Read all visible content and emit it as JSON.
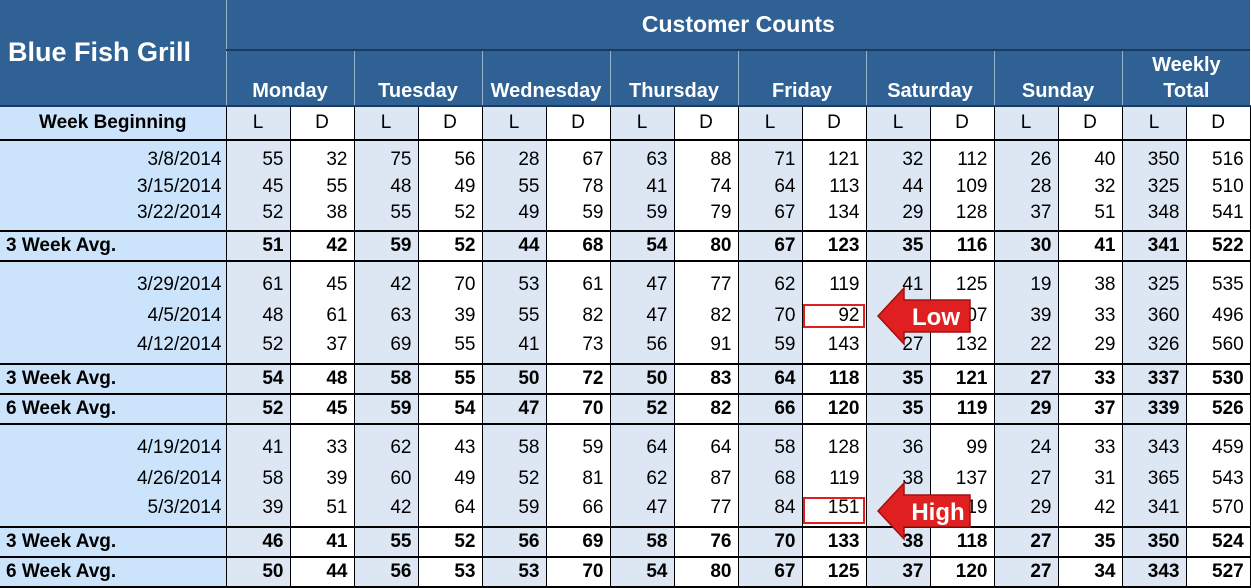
{
  "app_title": "Blue Fish Grill",
  "header_title": "Customer Counts",
  "days": [
    "Monday",
    "Tuesday",
    "Wednesday",
    "Thursday",
    "Friday",
    "Saturday",
    "Sunday"
  ],
  "weekly_total_label_1": "Weekly",
  "weekly_total_label_2": "Total",
  "week_beginning_label": "Week Beginning",
  "lunch_label": "L",
  "dinner_label": "D",
  "rows": [
    {
      "kind": "data",
      "group": 1,
      "pos": "first",
      "label": "3/8/2014",
      "values": [
        55,
        32,
        75,
        56,
        28,
        67,
        63,
        88,
        71,
        121,
        32,
        112,
        26,
        40,
        350,
        516
      ]
    },
    {
      "kind": "data",
      "group": 1,
      "pos": "mid",
      "label": "3/15/2014",
      "values": [
        45,
        55,
        48,
        49,
        55,
        78,
        41,
        74,
        64,
        113,
        44,
        109,
        28,
        32,
        325,
        510
      ]
    },
    {
      "kind": "data",
      "group": 1,
      "pos": "last",
      "label": "3/22/2014",
      "values": [
        52,
        38,
        55,
        52,
        49,
        59,
        59,
        79,
        67,
        134,
        29,
        128,
        37,
        51,
        348,
        541
      ]
    },
    {
      "kind": "avg",
      "label": "3 Week Avg.",
      "values": [
        51,
        42,
        59,
        52,
        44,
        68,
        54,
        80,
        67,
        123,
        35,
        116,
        30,
        41,
        341,
        522
      ]
    },
    {
      "kind": "data",
      "group": 2,
      "pos": "first",
      "label": "3/29/2014",
      "values": [
        61,
        45,
        42,
        70,
        53,
        61,
        47,
        77,
        62,
        119,
        41,
        125,
        19,
        38,
        325,
        535
      ]
    },
    {
      "kind": "data",
      "group": 2,
      "pos": "mid",
      "label": "4/5/2014",
      "values": [
        48,
        61,
        63,
        39,
        55,
        82,
        47,
        82,
        70,
        92,
        "",
        107,
        39,
        33,
        360,
        496
      ]
    },
    {
      "kind": "data",
      "group": 2,
      "pos": "last",
      "label": "4/12/2014",
      "values": [
        52,
        37,
        69,
        55,
        41,
        73,
        56,
        91,
        59,
        143,
        27,
        132,
        22,
        29,
        326,
        560
      ]
    },
    {
      "kind": "avg",
      "label": "3 Week Avg.",
      "values": [
        54,
        48,
        58,
        55,
        50,
        72,
        50,
        83,
        64,
        118,
        35,
        121,
        27,
        33,
        337,
        530
      ]
    },
    {
      "kind": "avg",
      "label": "6 Week Avg.",
      "values": [
        52,
        45,
        59,
        54,
        47,
        70,
        52,
        82,
        66,
        120,
        35,
        119,
        29,
        37,
        339,
        526
      ]
    },
    {
      "kind": "data",
      "group": 3,
      "pos": "first",
      "label": "4/19/2014",
      "values": [
        41,
        33,
        62,
        43,
        58,
        59,
        64,
        64,
        58,
        128,
        36,
        99,
        24,
        33,
        343,
        459
      ]
    },
    {
      "kind": "data",
      "group": 3,
      "pos": "mid",
      "label": "4/26/2014",
      "values": [
        58,
        39,
        60,
        49,
        52,
        81,
        62,
        87,
        68,
        119,
        38,
        137,
        27,
        31,
        365,
        543
      ]
    },
    {
      "kind": "data",
      "group": 3,
      "pos": "last",
      "label": "5/3/2014",
      "values": [
        39,
        51,
        42,
        64,
        59,
        66,
        47,
        77,
        84,
        151,
        "",
        119,
        29,
        42,
        341,
        570
      ]
    },
    {
      "kind": "avg",
      "label": "3 Week Avg.",
      "values": [
        46,
        41,
        55,
        52,
        56,
        69,
        58,
        76,
        70,
        133,
        38,
        118,
        27,
        35,
        350,
        524
      ]
    },
    {
      "kind": "avg",
      "label": "6 Week Avg.",
      "values": [
        50,
        44,
        56,
        53,
        53,
        70,
        54,
        80,
        67,
        125,
        37,
        120,
        27,
        34,
        343,
        527
      ]
    }
  ],
  "callouts": {
    "low": {
      "text": "Low",
      "color": "#e02020"
    },
    "high": {
      "text": "High",
      "color": "#e02020"
    }
  },
  "colors": {
    "header_blue": "#2f6194",
    "label_blue": "#cce4fb",
    "lunch_shade": "#dde7f3",
    "highlight_red": "#e02020"
  }
}
